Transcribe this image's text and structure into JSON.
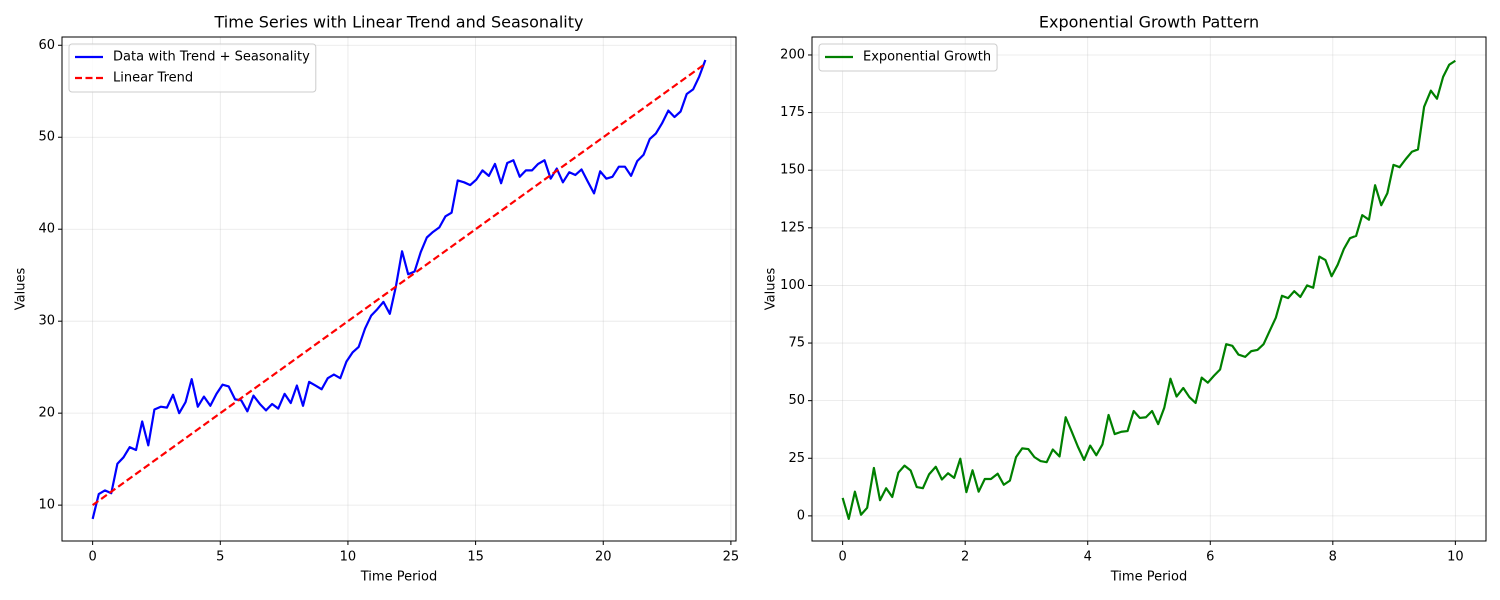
{
  "chart_data": [
    {
      "type": "line",
      "title": "Time Series with Linear Trend and Seasonality",
      "xlabel": "Time Period",
      "ylabel": "Values",
      "x": [
        0,
        0.24,
        0.48,
        0.73,
        0.97,
        1.21,
        1.45,
        1.7,
        1.94,
        2.18,
        2.42,
        2.67,
        2.91,
        3.15,
        3.39,
        3.64,
        3.88,
        4.12,
        4.36,
        4.61,
        4.85,
        5.09,
        5.33,
        5.58,
        5.82,
        6.06,
        6.3,
        6.55,
        6.79,
        7.03,
        7.27,
        7.52,
        7.76,
        8,
        8.24,
        8.48,
        8.73,
        8.97,
        9.21,
        9.45,
        9.7,
        9.94,
        10.18,
        10.42,
        10.67,
        10.91,
        11.15,
        11.39,
        11.64,
        11.88,
        12.12,
        12.36,
        12.61,
        12.85,
        13.09,
        13.33,
        13.58,
        13.82,
        14.06,
        14.3,
        14.55,
        14.79,
        15.03,
        15.27,
        15.52,
        15.76,
        16,
        16.24,
        16.48,
        16.73,
        16.97,
        17.21,
        17.45,
        17.7,
        17.94,
        18.18,
        18.42,
        18.67,
        18.91,
        19.15,
        19.39,
        19.64,
        19.88,
        20.12,
        20.36,
        20.61,
        20.85,
        21.09,
        21.33,
        21.58,
        21.82,
        22.06,
        22.3,
        22.55,
        22.79,
        23.03,
        23.27,
        23.52,
        23.76,
        24
      ],
      "series": [
        {
          "name": "Data with Trend + Seasonality",
          "color": "#0000ff",
          "linestyle": "solid",
          "values": [
            8.5,
            11.2,
            11.6,
            11.3,
            14.5,
            15.2,
            16.3,
            16.0,
            19.1,
            16.5,
            20.4,
            20.7,
            20.6,
            22.0,
            20.0,
            21.2,
            23.7,
            20.7,
            21.8,
            20.8,
            22.1,
            23.1,
            22.9,
            21.5,
            21.4,
            20.2,
            21.9,
            21.0,
            20.3,
            21.0,
            20.5,
            22.1,
            21.1,
            23.0,
            20.8,
            23.4,
            23.0,
            22.6,
            23.8,
            24.2,
            23.8,
            25.6,
            26.6,
            27.2,
            29.2,
            30.6,
            31.3,
            32.1,
            30.8,
            33.8,
            37.6,
            35.1,
            35.4,
            37.5,
            39.1,
            39.7,
            40.2,
            41.4,
            41.8,
            45.3,
            45.1,
            44.8,
            45.4,
            46.4,
            45.8,
            47.1,
            45.0,
            47.2,
            47.5,
            45.7,
            46.4,
            46.4,
            47.1,
            47.5,
            45.5,
            46.6,
            45.1,
            46.2,
            45.9,
            46.5,
            45.2,
            43.9,
            46.3,
            45.5,
            45.7,
            46.8,
            46.8,
            45.8,
            47.4,
            48.1,
            49.8,
            50.4,
            51.5,
            52.9,
            52.2,
            52.8,
            54.7,
            55.2,
            56.6,
            58.4
          ]
        },
        {
          "name": "Linear Trend",
          "color": "#ff0000",
          "linestyle": "dashed",
          "x": [
            0,
            24
          ],
          "values": [
            10,
            58
          ]
        }
      ],
      "xlim": [
        -1.2,
        25.2
      ],
      "xticks": [
        0,
        5,
        10,
        15,
        20,
        25
      ],
      "ylim": [
        6.1,
        60.9
      ],
      "yticks": [
        10,
        20,
        30,
        40,
        50,
        60
      ],
      "grid": true,
      "legend": "upper-left"
    },
    {
      "type": "line",
      "title": "Exponential Growth Pattern",
      "xlabel": "Time Period",
      "ylabel": "Values",
      "x": [
        0,
        0.1,
        0.2,
        0.3,
        0.4,
        0.51,
        0.61,
        0.71,
        0.81,
        0.91,
        1.01,
        1.11,
        1.21,
        1.31,
        1.41,
        1.52,
        1.62,
        1.72,
        1.82,
        1.92,
        2.02,
        2.12,
        2.22,
        2.32,
        2.42,
        2.53,
        2.63,
        2.73,
        2.83,
        2.93,
        3.03,
        3.13,
        3.23,
        3.33,
        3.43,
        3.54,
        3.64,
        3.74,
        3.84,
        3.94,
        4.04,
        4.14,
        4.24,
        4.34,
        4.44,
        4.55,
        4.65,
        4.75,
        4.85,
        4.95,
        5.05,
        5.15,
        5.25,
        5.35,
        5.45,
        5.56,
        5.66,
        5.76,
        5.86,
        5.96,
        6.06,
        6.16,
        6.26,
        6.36,
        6.46,
        6.57,
        6.67,
        6.77,
        6.87,
        6.97,
        7.07,
        7.17,
        7.27,
        7.37,
        7.47,
        7.58,
        7.68,
        7.78,
        7.88,
        7.98,
        8.08,
        8.18,
        8.28,
        8.38,
        8.48,
        8.59,
        8.69,
        8.79,
        8.89,
        8.99,
        9.09,
        9.19,
        9.29,
        9.39,
        9.49,
        9.6,
        9.7,
        9.8,
        9.9,
        10
      ],
      "series": [
        {
          "name": "Exponential Growth",
          "color": "#008000",
          "linestyle": "solid",
          "values": [
            7.8,
            -1.3,
            10.5,
            0.5,
            3.5,
            20.8,
            6.8,
            12.0,
            8.2,
            18.8,
            21.8,
            19.7,
            12.5,
            12.0,
            18.0,
            21.3,
            15.8,
            18.5,
            16.5,
            24.8,
            10.3,
            19.8,
            10.5,
            16.0,
            16.0,
            18.3,
            13.5,
            15.3,
            25.5,
            29.3,
            29.0,
            25.5,
            23.8,
            23.3,
            28.8,
            25.8,
            42.8,
            36.5,
            30.0,
            24.3,
            30.5,
            26.3,
            31.0,
            43.8,
            35.5,
            36.5,
            36.8,
            45.5,
            42.5,
            42.8,
            45.5,
            39.8,
            47.0,
            59.5,
            51.8,
            55.5,
            51.5,
            49.0,
            60.0,
            57.8,
            60.8,
            63.5,
            74.5,
            73.8,
            70.0,
            69.0,
            71.5,
            72.0,
            74.5,
            80.3,
            86.0,
            95.5,
            94.5,
            97.5,
            95.0,
            100.0,
            99.0,
            112.5,
            111.0,
            104.0,
            109.0,
            115.8,
            120.5,
            121.5,
            130.5,
            128.5,
            143.5,
            134.8,
            140.0,
            152.3,
            151.3,
            154.8,
            158.0,
            159.0,
            177.5,
            184.5,
            181.0,
            190.5,
            195.8,
            197.5
          ]
        }
      ],
      "xlim": [
        -0.5,
        10.5
      ],
      "xticks": [
        0,
        2,
        4,
        6,
        8,
        10
      ],
      "ylim": [
        -10.9,
        207.8
      ],
      "yticks": [
        0,
        25,
        50,
        75,
        100,
        125,
        150,
        175,
        200
      ],
      "grid": true,
      "legend": "upper-left"
    }
  ]
}
